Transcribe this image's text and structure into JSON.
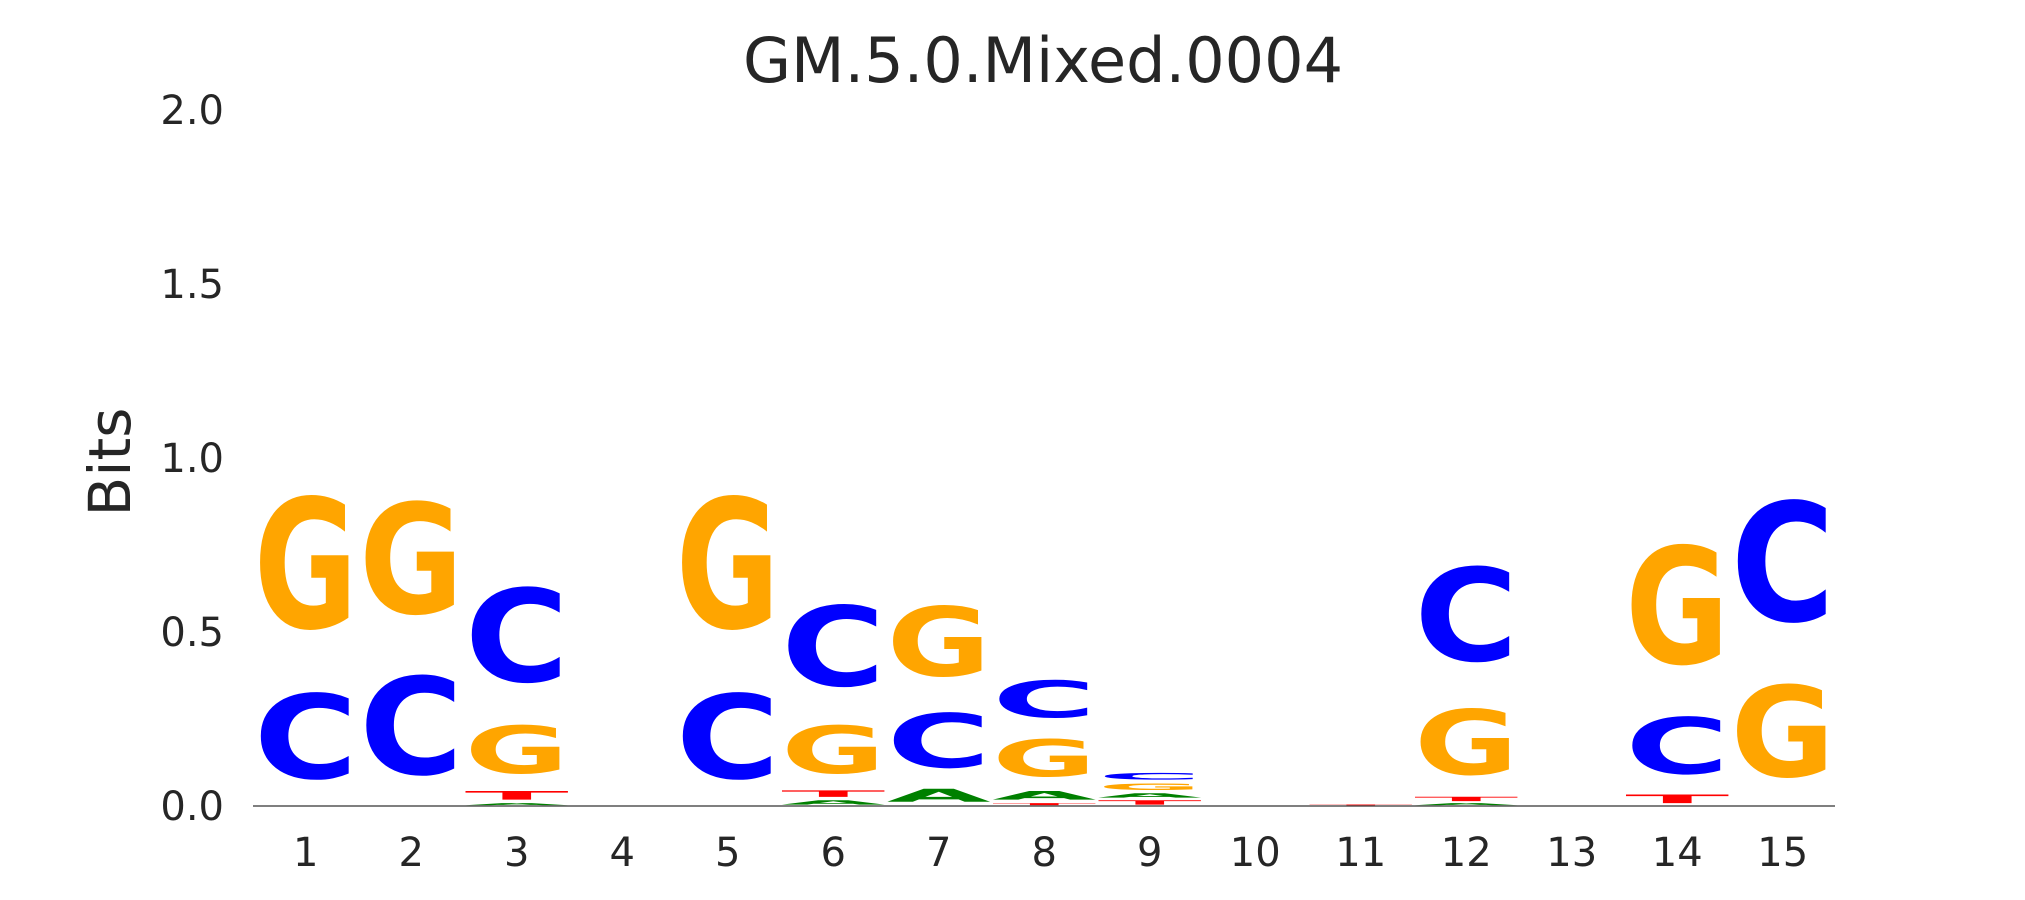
{
  "chart_data": {
    "type": "sequence_logo",
    "title": "GM.5.0.Mixed.0004",
    "xlabel": "",
    "ylabel": "Bits",
    "ylim": [
      0,
      2.0
    ],
    "y_ticks": [
      "0.0",
      "0.5",
      "1.0",
      "1.5",
      "2.0"
    ],
    "y_tick_values": [
      0,
      0.5,
      1.0,
      1.5,
      2.0
    ],
    "x_ticks": [
      "1",
      "2",
      "3",
      "4",
      "5",
      "6",
      "7",
      "8",
      "9",
      "10",
      "11",
      "12",
      "13",
      "14",
      "15"
    ],
    "colors": {
      "A": "#008000",
      "C": "#0000ff",
      "G": "#ffa500",
      "T": "#ff0000"
    },
    "positions": [
      {
        "pos": "1",
        "letters": [
          [
            "T",
            0.0
          ],
          [
            "A",
            0.0
          ],
          [
            "C",
            0.39
          ],
          [
            "G",
            0.6
          ]
        ]
      },
      {
        "pos": "2",
        "letters": [
          [
            "T",
            0.0
          ],
          [
            "A",
            0.0
          ],
          [
            "C",
            0.45
          ],
          [
            "G",
            0.51
          ]
        ]
      },
      {
        "pos": "3",
        "letters": [
          [
            "A",
            0.01
          ],
          [
            "T",
            0.04
          ],
          [
            "G",
            0.22
          ],
          [
            "C",
            0.43
          ]
        ]
      },
      {
        "pos": "4",
        "letters": []
      },
      {
        "pos": "5",
        "letters": [
          [
            "T",
            0.0
          ],
          [
            "A",
            0.0
          ],
          [
            "C",
            0.39
          ],
          [
            "G",
            0.6
          ]
        ]
      },
      {
        "pos": "6",
        "letters": [
          [
            "A",
            0.02
          ],
          [
            "T",
            0.03
          ],
          [
            "G",
            0.22
          ],
          [
            "C",
            0.37
          ]
        ]
      },
      {
        "pos": "7",
        "letters": [
          [
            "A",
            0.06
          ],
          [
            "C",
            0.25
          ],
          [
            "G",
            0.32
          ]
        ]
      },
      {
        "pos": "8",
        "letters": [
          [
            "T",
            0.01
          ],
          [
            "A",
            0.04
          ],
          [
            "G",
            0.17
          ],
          [
            "C",
            0.17
          ]
        ]
      },
      {
        "pos": "9",
        "letters": [
          [
            "T",
            0.02
          ],
          [
            "A",
            0.02
          ],
          [
            "G",
            0.03
          ],
          [
            "C",
            0.03
          ]
        ]
      },
      {
        "pos": "10",
        "letters": []
      },
      {
        "pos": "11",
        "letters": [
          [
            "T",
            0.005
          ]
        ]
      },
      {
        "pos": "12",
        "letters": [
          [
            "A",
            0.01
          ],
          [
            "T",
            0.02
          ],
          [
            "G",
            0.3
          ],
          [
            "C",
            0.43
          ]
        ]
      },
      {
        "pos": "13",
        "letters": []
      },
      {
        "pos": "14",
        "letters": [
          [
            "T",
            0.04
          ],
          [
            "C",
            0.26
          ],
          [
            "G",
            0.54
          ]
        ]
      },
      {
        "pos": "15",
        "letters": [
          [
            "G",
            0.42
          ],
          [
            "C",
            0.55
          ]
        ]
      }
    ]
  }
}
